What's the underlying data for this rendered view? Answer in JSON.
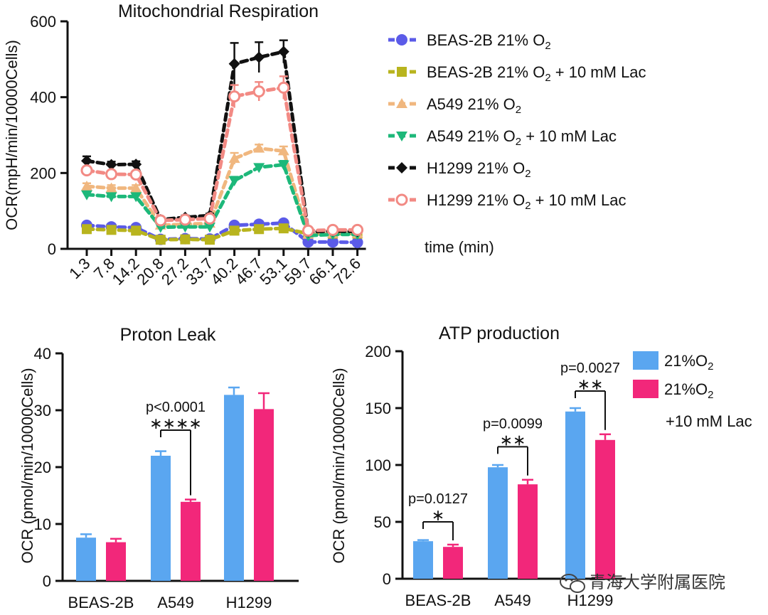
{
  "chart_data": [
    {
      "type": "line",
      "title": "Mitochondrial Respiration",
      "xlabel": "time (min)",
      "ylabel": "OCR(mpH/min/10000Cells)",
      "x": [
        "1.3",
        "7.8",
        "14.2",
        "20.8",
        "27.2",
        "33.7",
        "40.2",
        "46.7",
        "53.1",
        "59.7",
        "66.1",
        "72.6"
      ],
      "ylim": [
        0,
        600
      ],
      "yticks": [
        "0",
        "200",
        "400",
        "600"
      ],
      "series": [
        {
          "name": "BEAS-2B 21% O",
          "sub": "2",
          "suffix": "",
          "color": "#5b5be8",
          "marker": "circle",
          "values": [
            62,
            58,
            56,
            25,
            27,
            26,
            62,
            65,
            68,
            18,
            18,
            17
          ],
          "errors": [
            4,
            4,
            4,
            3,
            3,
            3,
            4,
            4,
            4,
            3,
            3,
            3
          ]
        },
        {
          "name": "BEAS-2B 21% O",
          "sub": "2",
          "suffix": " + 10 mM Lac",
          "color": "#b8b41e",
          "marker": "square",
          "values": [
            52,
            50,
            48,
            24,
            25,
            24,
            48,
            52,
            54,
            40,
            40,
            40
          ],
          "errors": [
            4,
            4,
            4,
            3,
            3,
            3,
            4,
            4,
            4,
            3,
            3,
            3
          ]
        },
        {
          "name": "A549 21% O",
          "sub": "2",
          "suffix": "",
          "color": "#f0b77f",
          "marker": "triangle-up",
          "values": [
            165,
            160,
            160,
            62,
            65,
            67,
            238,
            265,
            258,
            38,
            40,
            40
          ],
          "errors": [
            8,
            8,
            8,
            5,
            5,
            5,
            15,
            10,
            12,
            4,
            4,
            4
          ]
        },
        {
          "name": "A549 21% O",
          "sub": "2",
          "suffix": " + 10 mM Lac",
          "color": "#1db87a",
          "marker": "triangle-down",
          "values": [
            143,
            138,
            138,
            57,
            58,
            58,
            180,
            215,
            222,
            35,
            38,
            38
          ],
          "errors": [
            8,
            7,
            7,
            4,
            4,
            4,
            10,
            8,
            10,
            4,
            4,
            4
          ]
        },
        {
          "name": "H1299 21% O",
          "sub": "2",
          "suffix": "",
          "color": "#111111",
          "marker": "diamond",
          "values": [
            232,
            222,
            223,
            77,
            83,
            88,
            488,
            505,
            520,
            45,
            47,
            46
          ],
          "errors": [
            12,
            8,
            8,
            5,
            5,
            5,
            55,
            40,
            30,
            4,
            4,
            4
          ]
        },
        {
          "name": "H1299 21% O",
          "sub": "2",
          "suffix": " + 10 mM Lac",
          "color": "#f28a84",
          "marker": "open-circle",
          "values": [
            207,
            197,
            196,
            75,
            77,
            80,
            402,
            415,
            425,
            48,
            50,
            50
          ],
          "errors": [
            10,
            8,
            8,
            5,
            5,
            5,
            30,
            25,
            30,
            4,
            4,
            4
          ]
        }
      ]
    },
    {
      "type": "bar",
      "title": "Proton Leak",
      "ylabel": "OCR (pmol/min/10000Cells)",
      "categories": [
        "BEAS-2B",
        "A549",
        "H1299"
      ],
      "ylim": [
        0,
        40
      ],
      "yticks": [
        "0",
        "10",
        "20",
        "30",
        "40"
      ],
      "series": [
        {
          "name": "21%O2",
          "color": "#5aa6f0",
          "values": [
            7.6,
            22.0,
            32.7
          ],
          "errors": [
            0.6,
            0.8,
            1.3
          ]
        },
        {
          "name": "21%O2 +10 mM Lac",
          "color": "#f2277a",
          "values": [
            6.8,
            13.9,
            30.2
          ],
          "errors": [
            0.6,
            0.4,
            2.8
          ]
        }
      ],
      "comparisons": [
        {
          "category": 1,
          "p": "p<0.0001",
          "stars": "∗∗∗∗",
          "value": 26.5
        }
      ]
    },
    {
      "type": "bar",
      "title": "ATP production",
      "ylabel": "OCR (pmol/min/10000Cells)",
      "categories": [
        "BEAS-2B",
        "A549",
        "H1299"
      ],
      "ylim": [
        0,
        200
      ],
      "yticks": [
        "0",
        "50",
        "100",
        "150",
        "200"
      ],
      "series": [
        {
          "name": "21%O",
          "color": "#5aa6f0",
          "values": [
            33,
            98,
            147
          ],
          "errors": [
            1,
            2,
            3
          ]
        },
        {
          "name": "21%O",
          "color": "#f2277a",
          "values": [
            28,
            83,
            122
          ],
          "errors": [
            2,
            4,
            5
          ]
        }
      ],
      "comparisons": [
        {
          "category": 0,
          "p": "p=0.0127",
          "stars": "∗",
          "value": 50
        },
        {
          "category": 1,
          "p": "p=0.0099",
          "stars": "∗∗",
          "value": 116
        },
        {
          "category": 2,
          "p": "p=0.0027",
          "stars": "∗∗",
          "value": 165
        }
      ]
    }
  ],
  "bar_legend": {
    "items": [
      {
        "label": "21%O",
        "sub": "2",
        "color": "#5aa6f0"
      },
      {
        "label": "21%O",
        "sub": "2",
        "color": "#f2277a"
      }
    ],
    "extra_line": "+10 mM Lac"
  },
  "watermark": "青海大学附属医院",
  "colors": {
    "axis": "#111111",
    "blue": "#5aa6f0",
    "pink": "#f2277a"
  }
}
